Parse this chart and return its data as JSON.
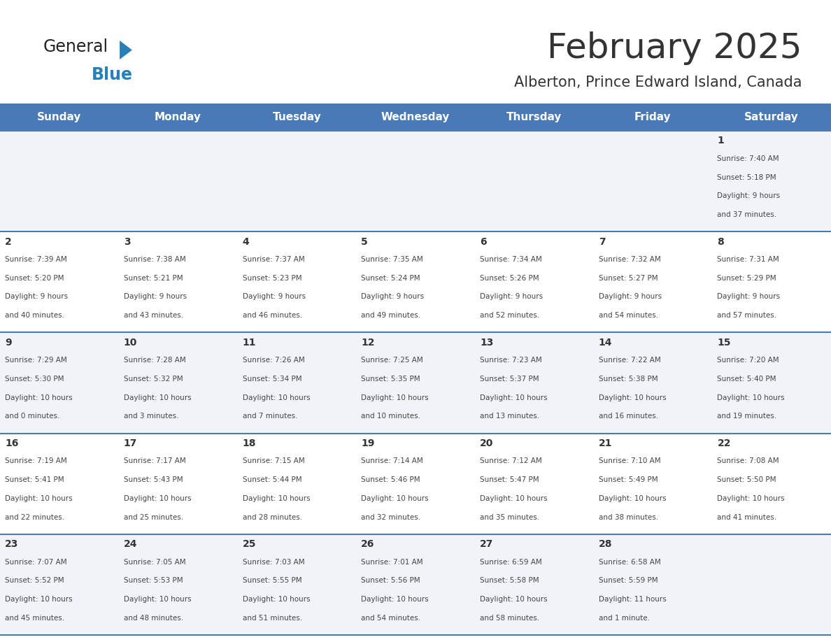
{
  "title": "February 2025",
  "subtitle": "Alberton, Prince Edward Island, Canada",
  "header_color": "#4a7ab5",
  "header_text_color": "#FFFFFF",
  "weekdays": [
    "Sunday",
    "Monday",
    "Tuesday",
    "Wednesday",
    "Thursday",
    "Friday",
    "Saturday"
  ],
  "row_bg_light": "#f0f4f8",
  "row_bg_white": "#FFFFFF",
  "separator_color": "#4a7ab5",
  "day_number_color": "#333333",
  "info_text_color": "#444444",
  "logo_general_color": "#222222",
  "logo_blue_color": "#2980B9",
  "calendar_data": [
    {
      "day": 1,
      "col": 6,
      "row": 0,
      "sunrise": "7:40 AM",
      "sunset": "5:18 PM",
      "daylight": "9 hours and 37 minutes."
    },
    {
      "day": 2,
      "col": 0,
      "row": 1,
      "sunrise": "7:39 AM",
      "sunset": "5:20 PM",
      "daylight": "9 hours and 40 minutes."
    },
    {
      "day": 3,
      "col": 1,
      "row": 1,
      "sunrise": "7:38 AM",
      "sunset": "5:21 PM",
      "daylight": "9 hours and 43 minutes."
    },
    {
      "day": 4,
      "col": 2,
      "row": 1,
      "sunrise": "7:37 AM",
      "sunset": "5:23 PM",
      "daylight": "9 hours and 46 minutes."
    },
    {
      "day": 5,
      "col": 3,
      "row": 1,
      "sunrise": "7:35 AM",
      "sunset": "5:24 PM",
      "daylight": "9 hours and 49 minutes."
    },
    {
      "day": 6,
      "col": 4,
      "row": 1,
      "sunrise": "7:34 AM",
      "sunset": "5:26 PM",
      "daylight": "9 hours and 52 minutes."
    },
    {
      "day": 7,
      "col": 5,
      "row": 1,
      "sunrise": "7:32 AM",
      "sunset": "5:27 PM",
      "daylight": "9 hours and 54 minutes."
    },
    {
      "day": 8,
      "col": 6,
      "row": 1,
      "sunrise": "7:31 AM",
      "sunset": "5:29 PM",
      "daylight": "9 hours and 57 minutes."
    },
    {
      "day": 9,
      "col": 0,
      "row": 2,
      "sunrise": "7:29 AM",
      "sunset": "5:30 PM",
      "daylight": "10 hours and 0 minutes."
    },
    {
      "day": 10,
      "col": 1,
      "row": 2,
      "sunrise": "7:28 AM",
      "sunset": "5:32 PM",
      "daylight": "10 hours and 3 minutes."
    },
    {
      "day": 11,
      "col": 2,
      "row": 2,
      "sunrise": "7:26 AM",
      "sunset": "5:34 PM",
      "daylight": "10 hours and 7 minutes."
    },
    {
      "day": 12,
      "col": 3,
      "row": 2,
      "sunrise": "7:25 AM",
      "sunset": "5:35 PM",
      "daylight": "10 hours and 10 minutes."
    },
    {
      "day": 13,
      "col": 4,
      "row": 2,
      "sunrise": "7:23 AM",
      "sunset": "5:37 PM",
      "daylight": "10 hours and 13 minutes."
    },
    {
      "day": 14,
      "col": 5,
      "row": 2,
      "sunrise": "7:22 AM",
      "sunset": "5:38 PM",
      "daylight": "10 hours and 16 minutes."
    },
    {
      "day": 15,
      "col": 6,
      "row": 2,
      "sunrise": "7:20 AM",
      "sunset": "5:40 PM",
      "daylight": "10 hours and 19 minutes."
    },
    {
      "day": 16,
      "col": 0,
      "row": 3,
      "sunrise": "7:19 AM",
      "sunset": "5:41 PM",
      "daylight": "10 hours and 22 minutes."
    },
    {
      "day": 17,
      "col": 1,
      "row": 3,
      "sunrise": "7:17 AM",
      "sunset": "5:43 PM",
      "daylight": "10 hours and 25 minutes."
    },
    {
      "day": 18,
      "col": 2,
      "row": 3,
      "sunrise": "7:15 AM",
      "sunset": "5:44 PM",
      "daylight": "10 hours and 28 minutes."
    },
    {
      "day": 19,
      "col": 3,
      "row": 3,
      "sunrise": "7:14 AM",
      "sunset": "5:46 PM",
      "daylight": "10 hours and 32 minutes."
    },
    {
      "day": 20,
      "col": 4,
      "row": 3,
      "sunrise": "7:12 AM",
      "sunset": "5:47 PM",
      "daylight": "10 hours and 35 minutes."
    },
    {
      "day": 21,
      "col": 5,
      "row": 3,
      "sunrise": "7:10 AM",
      "sunset": "5:49 PM",
      "daylight": "10 hours and 38 minutes."
    },
    {
      "day": 22,
      "col": 6,
      "row": 3,
      "sunrise": "7:08 AM",
      "sunset": "5:50 PM",
      "daylight": "10 hours and 41 minutes."
    },
    {
      "day": 23,
      "col": 0,
      "row": 4,
      "sunrise": "7:07 AM",
      "sunset": "5:52 PM",
      "daylight": "10 hours and 45 minutes."
    },
    {
      "day": 24,
      "col": 1,
      "row": 4,
      "sunrise": "7:05 AM",
      "sunset": "5:53 PM",
      "daylight": "10 hours and 48 minutes."
    },
    {
      "day": 25,
      "col": 2,
      "row": 4,
      "sunrise": "7:03 AM",
      "sunset": "5:55 PM",
      "daylight": "10 hours and 51 minutes."
    },
    {
      "day": 26,
      "col": 3,
      "row": 4,
      "sunrise": "7:01 AM",
      "sunset": "5:56 PM",
      "daylight": "10 hours and 54 minutes."
    },
    {
      "day": 27,
      "col": 4,
      "row": 4,
      "sunrise": "6:59 AM",
      "sunset": "5:58 PM",
      "daylight": "10 hours and 58 minutes."
    },
    {
      "day": 28,
      "col": 5,
      "row": 4,
      "sunrise": "6:58 AM",
      "sunset": "5:59 PM",
      "daylight": "11 hours and 1 minute."
    }
  ]
}
